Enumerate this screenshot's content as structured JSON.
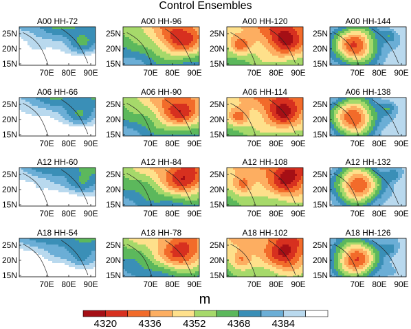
{
  "figure": {
    "title": "Control Ensembles",
    "units_label": "m",
    "lat_ticks": [
      "25N",
      "20N",
      "15N"
    ],
    "lon_ticks": [
      "70E",
      "80E",
      "90E"
    ]
  },
  "panels": [
    {
      "label": "A00 HH-72"
    },
    {
      "label": "A00 HH-96"
    },
    {
      "label": "A00 HH-120"
    },
    {
      "label": "A00 HH-144"
    },
    {
      "label": "A06 HH-66"
    },
    {
      "label": "A06 HH-90"
    },
    {
      "label": "A06 HH-114"
    },
    {
      "label": "A06 HH-138"
    },
    {
      "label": "A12 HH-60"
    },
    {
      "label": "A12 HH-84"
    },
    {
      "label": "A12 HH-108"
    },
    {
      "label": "A12 HH-132"
    },
    {
      "label": "A18 HH-54"
    },
    {
      "label": "A18 HH-78"
    },
    {
      "label": "A18 HH-102"
    },
    {
      "label": "A18 HH-126"
    }
  ],
  "colorbar": {
    "colors": [
      "#a50f15",
      "#d7301f",
      "#f26b2a",
      "#fdae61",
      "#fee08b",
      "#a6d96a",
      "#5cb85c",
      "#3a8fb7",
      "#6baed6",
      "#b9d9ee",
      "#ffffff"
    ],
    "labels": [
      "4320",
      "4336",
      "4352",
      "4368",
      "4384"
    ]
  }
}
